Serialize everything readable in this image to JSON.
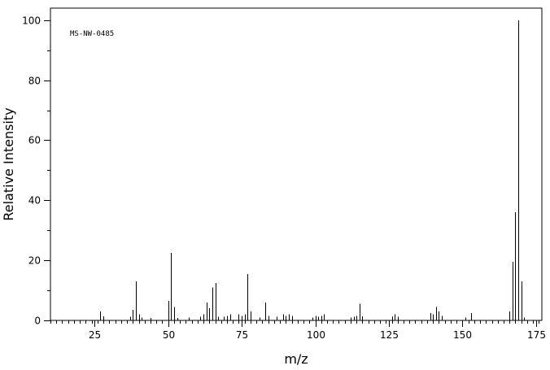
{
  "chart_data": {
    "type": "bar",
    "title": "",
    "annotation": "MS-NW-0485",
    "xlabel": "m/z",
    "ylabel": "Relative Intensity",
    "xlim": [
      10,
      177
    ],
    "ylim": [
      0,
      104
    ],
    "x_ticks": [
      25,
      50,
      75,
      100,
      125,
      150,
      175
    ],
    "x_tick_labels": [
      "25",
      "50",
      "75",
      "100",
      "125",
      "150",
      "175"
    ],
    "y_ticks": [
      0,
      20,
      40,
      60,
      80,
      100
    ],
    "y_tick_labels": [
      "0",
      "20",
      "40",
      "60",
      "80",
      "100"
    ],
    "grid": false,
    "x": [
      27,
      28,
      37,
      38,
      39,
      40,
      41,
      44,
      50,
      51,
      52,
      53,
      57,
      61,
      62,
      63,
      64,
      65,
      66,
      67,
      69,
      70,
      71,
      74,
      75,
      76,
      77,
      78,
      81,
      83,
      84,
      87,
      89,
      90,
      91,
      92,
      99,
      100,
      101,
      102,
      103,
      112,
      113,
      114,
      115,
      116,
      126,
      127,
      128,
      139,
      140,
      141,
      142,
      143,
      151,
      153,
      166,
      167,
      168,
      169,
      170,
      171
    ],
    "values": [
      3,
      1.3,
      1.2,
      3.5,
      13,
      2,
      1,
      0.8,
      6.5,
      22.5,
      4.5,
      0.8,
      1,
      1.2,
      2,
      6,
      4,
      11,
      12.5,
      1.2,
      1.2,
      1.5,
      2,
      2,
      1.5,
      2,
      15.5,
      3,
      1,
      6,
      1.5,
      1.2,
      2,
      1.5,
      2,
      1.5,
      1,
      1.5,
      1.2,
      1.5,
      2,
      1,
      1.2,
      1.5,
      5.5,
      1.3,
      1.3,
      2,
      1.2,
      2.5,
      2,
      4.5,
      3,
      1.5,
      1,
      2.5,
      3,
      19.5,
      36,
      100,
      13,
      1
    ]
  }
}
